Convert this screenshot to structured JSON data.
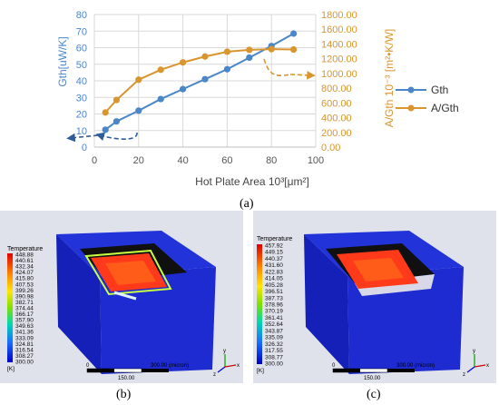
{
  "chart_data": {
    "type": "line",
    "x": [
      5,
      10,
      20,
      30,
      40,
      50,
      60,
      70,
      80,
      90
    ],
    "xlabel": "Hot Plate Area 10³[μm²]",
    "ylabel_left": "Gth[uW/K]",
    "ylabel_right": "A/Gth 10⁻³ [m²•K/W]",
    "xlim": [
      0,
      100
    ],
    "ylim_left": [
      0,
      80
    ],
    "ylim_right": [
      0,
      1800
    ],
    "x_ticks": [
      "0",
      "20",
      "40",
      "60",
      "80",
      "100"
    ],
    "y_ticks_left": [
      "0",
      "10",
      "20",
      "30",
      "40",
      "50",
      "60",
      "70",
      "80"
    ],
    "y_ticks_right": [
      "0.00",
      "200.00",
      "400.00",
      "600.00",
      "800.00",
      "1000.00",
      "1200.00",
      "1400.00",
      "1600.00",
      "1800.00"
    ],
    "grid": true,
    "legend_position": "right",
    "series": [
      {
        "name": "Gth",
        "axis": "left",
        "color": "#4a86c8",
        "values": [
          10.5,
          15.5,
          22,
          29,
          35,
          41,
          47,
          54,
          61,
          68.5
        ]
      },
      {
        "name": "A/Gth",
        "axis": "right",
        "color": "#d9952e",
        "values": [
          470,
          640,
          915,
          1050,
          1150,
          1230,
          1295,
          1320,
          1330,
          1325
        ]
      }
    ]
  },
  "captions": {
    "a": "(a)",
    "b": "(b)",
    "c": "(c)"
  },
  "panel_b": {
    "legend_title": "Temperature",
    "legend_values": [
      "448.88",
      "440.61",
      "432.34",
      "424.07",
      "415.80",
      "407.53",
      "399.26",
      "390.98",
      "382.71",
      "374.44",
      "366.17",
      "357.90",
      "349.63",
      "341.36",
      "333.09",
      "324.81",
      "316.54",
      "308.27",
      "300.00"
    ],
    "unit": "[K]",
    "scale_labels": [
      "0",
      "300.00 (micron)",
      "150.00"
    ]
  },
  "panel_c": {
    "legend_title": "Temperature",
    "legend_values": [
      "457.92",
      "449.15",
      "440.37",
      "431.60",
      "422.83",
      "414.05",
      "405.28",
      "396.51",
      "387.73",
      "378.96",
      "370.19",
      "361.41",
      "352.64",
      "343.87",
      "335.09",
      "326.32",
      "317.55",
      "308.77",
      "300.00"
    ],
    "unit": "[K]",
    "scale_labels": [
      "0",
      "300.00 (micron)",
      "150.00"
    ]
  },
  "axis_triad": {
    "x": "x",
    "y": "y",
    "z": "z"
  }
}
